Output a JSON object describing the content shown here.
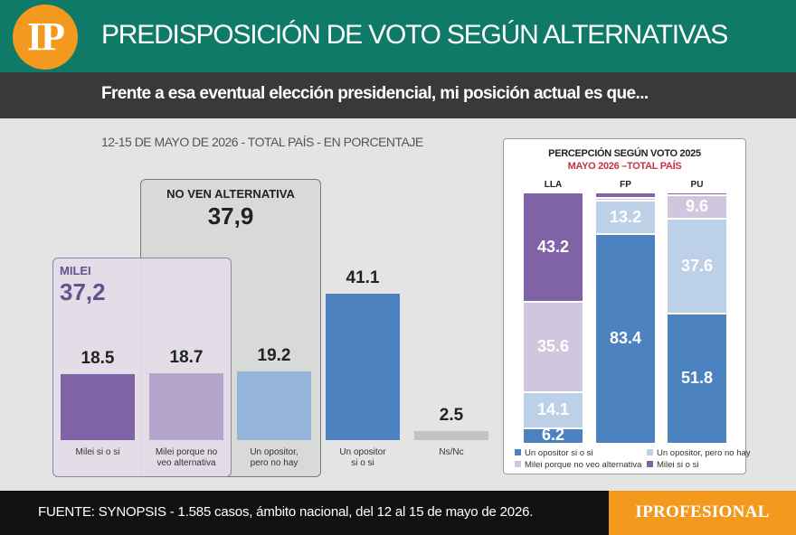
{
  "header": {
    "logo_text": "IP",
    "title": "PREDISPOSICIÓN DE VOTO SEGÚN ALTERNATIVAS",
    "subtitle": "Frente a esa eventual elección presidencial, mi posición actual es que...",
    "meta": "12-15 DE MAYO DE 2026 - TOTAL PAÍS - EN PORCENTAJE"
  },
  "groups": {
    "no_alternative": {
      "label": "NO VEN ALTERNATIVA",
      "value": "37,9"
    },
    "milei": {
      "label": "MILEI",
      "value": "37,2"
    }
  },
  "colors": {
    "milei_si_o_si": "#7f63a6",
    "milei_porque": "#b5a4cc",
    "opositor_no_hay": "#94b4da",
    "opositor_si_o_si": "#4d82c0",
    "ns_nc": "#c3c3c3",
    "panel_milei_porque": "#d0c7de",
    "panel_opositor_no_hay": "#bcd0e8"
  },
  "chart_data": [
    {
      "type": "bar",
      "categories": [
        "Milei si o si",
        "Milei porque no\nveo alternativa",
        "Un opositor,\npero no hay",
        "Un opositor\nsi o si",
        "Ns/Nc"
      ],
      "values": [
        18.5,
        18.7,
        19.2,
        41.1,
        2.5
      ],
      "value_labels": [
        "18.5",
        "18.7",
        "19.2",
        "41.1",
        "2.5"
      ],
      "ylim": [
        0,
        45
      ],
      "grid": false
    },
    {
      "type": "bar",
      "stacked": true,
      "title": "PERCEPCIÓN SEGÚN VOTO 2025",
      "subtitle": "MAYO 2026 –TOTAL PAÍS",
      "categories": [
        "LLA",
        "FP",
        "PU"
      ],
      "series": [
        {
          "name": "Un opositor si o si",
          "values": [
            6.2,
            83.4,
            51.8
          ],
          "labels": [
            "6.2",
            "83.4",
            "51.8"
          ]
        },
        {
          "name": "Un opositor, pero no hay",
          "values": [
            14.1,
            13.2,
            37.6
          ],
          "labels": [
            "14.1",
            "13.2",
            "37.6"
          ]
        },
        {
          "name": "Milei porque no veo alternativa",
          "values": [
            35.6,
            1.4,
            9.6
          ],
          "labels": [
            "35.6",
            "",
            "9.6"
          ]
        },
        {
          "name": "Milei si o si",
          "values": [
            43.2,
            2.0,
            1.0
          ],
          "labels": [
            "43.2",
            "",
            ""
          ]
        }
      ],
      "ylim": [
        0,
        100
      ],
      "legend": "bottom"
    }
  ],
  "footer": {
    "source": "FUENTE: SYNOPSIS - 1.585 casos, ámbito nacional, del 12 al 15 de mayo de 2026.",
    "brand": "IPROFESIONAL"
  }
}
